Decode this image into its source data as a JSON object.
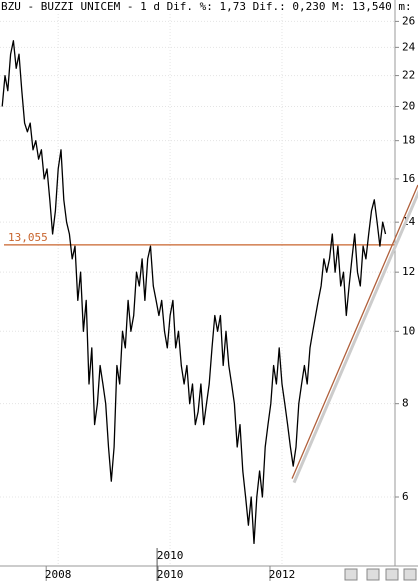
{
  "chart_data": {
    "type": "line",
    "title": "BZU - BUZZI UNICEM -  1 d Dif. %: 1,73 Dif.: 0,230 M: 13,540 m:",
    "x": [
      2007.0,
      2007.05,
      2007.1,
      2007.15,
      2007.2,
      2007.25,
      2007.3,
      2007.35,
      2007.4,
      2007.45,
      2007.5,
      2007.55,
      2007.6,
      2007.65,
      2007.7,
      2007.75,
      2007.8,
      2007.85,
      2007.9,
      2007.95,
      2008.0,
      2008.05,
      2008.1,
      2008.15,
      2008.2,
      2008.25,
      2008.3,
      2008.35,
      2008.4,
      2008.45,
      2008.5,
      2008.55,
      2008.6,
      2008.65,
      2008.7,
      2008.75,
      2008.8,
      2008.85,
      2008.9,
      2008.95,
      2009.0,
      2009.05,
      2009.1,
      2009.15,
      2009.2,
      2009.25,
      2009.3,
      2009.35,
      2009.4,
      2009.45,
      2009.5,
      2009.55,
      2009.6,
      2009.65,
      2009.7,
      2009.75,
      2009.8,
      2009.85,
      2009.9,
      2009.95,
      2010.0,
      2010.05,
      2010.1,
      2010.15,
      2010.2,
      2010.25,
      2010.3,
      2010.35,
      2010.4,
      2010.45,
      2010.5,
      2010.55,
      2010.6,
      2010.65,
      2010.7,
      2010.75,
      2010.8,
      2010.85,
      2010.9,
      2010.95,
      2011.0,
      2011.05,
      2011.1,
      2011.15,
      2011.2,
      2011.25,
      2011.3,
      2011.35,
      2011.4,
      2011.45,
      2011.5,
      2011.55,
      2011.6,
      2011.65,
      2011.7,
      2011.75,
      2011.8,
      2011.85,
      2011.9,
      2011.95,
      2012.0,
      2012.05,
      2012.1,
      2012.15,
      2012.2,
      2012.25,
      2012.3,
      2012.35,
      2012.4,
      2012.45,
      2012.5,
      2012.55,
      2012.6,
      2012.65,
      2012.7,
      2012.75,
      2012.8,
      2012.85,
      2012.9,
      2012.95,
      2013.0,
      2013.05,
      2013.1,
      2013.15,
      2013.2,
      2013.25,
      2013.3,
      2013.35,
      2013.4,
      2013.45,
      2013.5,
      2013.55,
      2013.6,
      2013.65,
      2013.7,
      2013.75,
      2013.8,
      2013.85
    ],
    "values": [
      20,
      22,
      21,
      23.5,
      24.5,
      22.5,
      23.5,
      21,
      19,
      18.5,
      19,
      17.5,
      18,
      17,
      17.5,
      16,
      16.5,
      15,
      13.5,
      14.5,
      16.5,
      17.5,
      15,
      14,
      13.5,
      12.5,
      13,
      11,
      12,
      10,
      11,
      8.5,
      9.5,
      7.5,
      8,
      9,
      8.5,
      8,
      7,
      6.3,
      7,
      9,
      8.5,
      10,
      9.5,
      11,
      10,
      10.5,
      12,
      11.5,
      12.5,
      11,
      12.5,
      13,
      11.5,
      11,
      10.5,
      11,
      10,
      9.5,
      10.5,
      11,
      9.5,
      10,
      9,
      8.5,
      9,
      8,
      8.5,
      7.5,
      7.8,
      8.5,
      7.5,
      8,
      8.5,
      9.5,
      10.5,
      10,
      10.5,
      9,
      10,
      9,
      8.5,
      8,
      7,
      7.5,
      6.5,
      6,
      5.5,
      6,
      5.2,
      6,
      6.5,
      6,
      7,
      7.5,
      8,
      9,
      8.5,
      9.5,
      8.5,
      8,
      7.5,
      7,
      6.6,
      7,
      8,
      8.5,
      9,
      8.5,
      9.5,
      10,
      10.5,
      11,
      11.5,
      12.5,
      12,
      12.5,
      13.5,
      12,
      13,
      11.5,
      12,
      10.5,
      11.5,
      12.5,
      13.5,
      12,
      11.5,
      13,
      12.5,
      13.5,
      14.5,
      15,
      14,
      13,
      14,
      13.5
    ],
    "color": "#000000",
    "xlim": [
      2006.96,
      2014.02
    ],
    "xticks": [
      2008,
      2010,
      2012
    ],
    "ylim": [
      4.85,
      26.6
    ],
    "yticks": [
      6,
      8,
      10,
      12,
      14,
      16,
      18,
      20,
      22,
      24,
      26
    ],
    "log_y": true,
    "grid": true,
    "cursor_label": "2010",
    "hline": {
      "value": 13.055,
      "label": "13,055",
      "color": "#c8642d"
    },
    "trendline": {
      "x": [
        2012.18,
        2014.43
      ],
      "values": [
        6.35,
        15.7
      ],
      "color": "#b0603c"
    }
  }
}
